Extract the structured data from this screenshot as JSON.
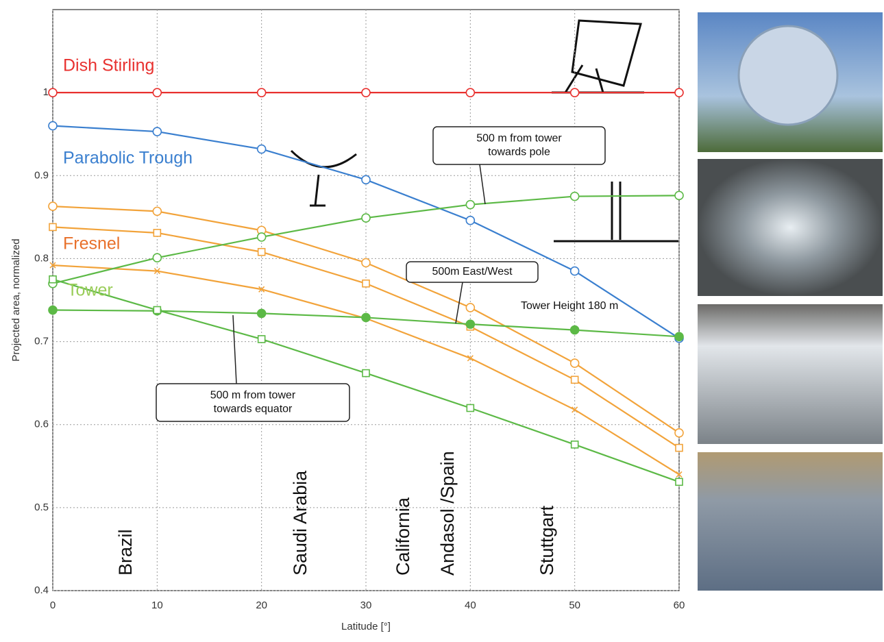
{
  "chart_data": {
    "type": "line",
    "x_label": "Latitude [°]",
    "y_label": "Projected area, normalized",
    "x": [
      0,
      10,
      20,
      30,
      40,
      50,
      60
    ],
    "xlim": [
      0,
      60
    ],
    "xticks": [
      0,
      10,
      20,
      30,
      40,
      50,
      60
    ],
    "ylim": [
      0.4,
      1.1
    ],
    "yticks": [
      0.4,
      0.5,
      0.6,
      0.7,
      0.8,
      0.9,
      1
    ],
    "grid": true,
    "series": [
      {
        "name": "Dish Stirling",
        "color": "#e8312f",
        "label_color": "#e8312f",
        "marker": "circle",
        "values": [
          1,
          1,
          1,
          1,
          1,
          1,
          1
        ]
      },
      {
        "name": "Parabolic Trough",
        "color": "#3a7fcf",
        "label_color": "#3a7fcf",
        "marker": "circle",
        "values": [
          0.96,
          0.953,
          0.932,
          0.895,
          0.846,
          0.785,
          0.704
        ]
      },
      {
        "name": "Fresnel",
        "color": "#f2a33a",
        "label_color": "#e8702a",
        "marker": "circle",
        "values": [
          0.863,
          0.857,
          0.834,
          0.795,
          0.741,
          0.674,
          0.59
        ]
      },
      {
        "color": "#f2a33a",
        "marker": "square",
        "values": [
          0.838,
          0.831,
          0.808,
          0.77,
          0.718,
          0.654,
          0.572
        ]
      },
      {
        "color": "#f2a33a",
        "marker": "x",
        "values": [
          0.792,
          0.785,
          0.763,
          0.728,
          0.68,
          0.618,
          0.54
        ]
      },
      {
        "name": "Tower",
        "color": "#5cb946",
        "label_color": "#9acd5a",
        "marker": "circle",
        "values": [
          0.77,
          0.801,
          0.826,
          0.849,
          0.865,
          0.875,
          0.876
        ]
      },
      {
        "color": "#5cb946",
        "marker": "filled",
        "values": [
          0.738,
          0.737,
          0.734,
          0.729,
          0.721,
          0.714,
          0.706
        ]
      },
      {
        "color": "#5cb946",
        "marker": "square",
        "values": [
          0.775,
          0.738,
          0.703,
          0.662,
          0.62,
          0.576,
          0.531
        ]
      }
    ],
    "annotations": [
      {
        "lines": [
          "500 m from tower",
          "towards pole"
        ]
      },
      {
        "lines": [
          "500m East/West"
        ]
      },
      {
        "lines": [
          "500 m  from tower",
          "towards equator"
        ]
      },
      {
        "lines": [
          "Tower Height 180 m"
        ]
      }
    ],
    "locations": [
      "Brazil",
      "Saudi Arabia",
      "California",
      "Andasol /Spain",
      "Stuttgart"
    ]
  }
}
